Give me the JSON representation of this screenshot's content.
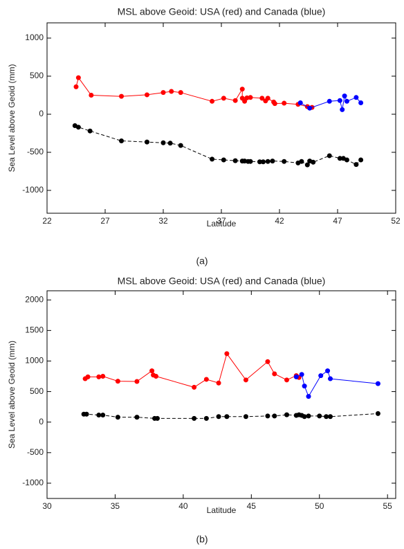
{
  "chart_data": [
    {
      "type": "line",
      "title": "MSL above Geoid: USA (red) and Canada (blue)",
      "xlabel": "Latitude",
      "ylabel": "Sea Level above Geoid (mm)",
      "caption": "(a)",
      "xlim": [
        22,
        52
      ],
      "xticks": [
        22,
        27,
        32,
        37,
        42,
        47,
        52
      ],
      "ylim": [
        -1300,
        1200
      ],
      "yticks": [
        -1000,
        -500,
        0,
        500,
        1000
      ],
      "series": [
        {
          "color": "#ff0000",
          "linestyle": "solid",
          "x": [
            24.5,
            24.7,
            25.8,
            28.4,
            30.6,
            32.0,
            32.7,
            33.5,
            36.2,
            37.2,
            38.2,
            38.8,
            38.8,
            39.0,
            39.2,
            39.5,
            40.5,
            40.8,
            41.0,
            41.5,
            41.6,
            42.4,
            43.6,
            44.4,
            44.8
          ],
          "values": [
            360,
            480,
            250,
            235,
            255,
            285,
            300,
            285,
            170,
            210,
            180,
            330,
            210,
            170,
            215,
            220,
            210,
            175,
            210,
            160,
            140,
            145,
            130,
            100,
            90
          ]
        },
        {
          "color": "#0000ff",
          "linestyle": "solid",
          "x": [
            43.8,
            44.6,
            46.3,
            47.2,
            47.4,
            47.6,
            47.8,
            48.6,
            49.0
          ],
          "values": [
            150,
            80,
            170,
            180,
            60,
            240,
            170,
            220,
            150
          ]
        },
        {
          "color": "#000000",
          "linestyle": "dashed",
          "x": [
            24.4,
            24.7,
            25.7,
            28.4,
            30.6,
            32.0,
            32.6,
            33.5,
            36.2,
            37.2,
            38.2,
            38.8,
            39.0,
            39.3,
            39.5,
            40.3,
            40.6,
            41.0,
            41.4,
            42.4,
            43.6,
            43.9,
            44.4,
            44.6,
            44.9,
            46.3,
            47.2,
            47.5,
            47.8,
            48.6,
            49.0
          ],
          "values": [
            -150,
            -170,
            -220,
            -350,
            -365,
            -375,
            -380,
            -410,
            -590,
            -600,
            -610,
            -615,
            -615,
            -620,
            -620,
            -625,
            -625,
            -620,
            -615,
            -620,
            -640,
            -620,
            -665,
            -615,
            -630,
            -545,
            -580,
            -580,
            -600,
            -660,
            -600
          ]
        }
      ]
    },
    {
      "type": "line",
      "title": "MSL above Geoid: USA (red) and Canada (blue)",
      "xlabel": "Latitude",
      "ylabel": "Sea Level above Geoid (mm)",
      "caption": "(b)",
      "xlim": [
        30,
        55.6
      ],
      "xticks": [
        30,
        35,
        40,
        45,
        50,
        55
      ],
      "ylim": [
        -1250,
        2150
      ],
      "yticks": [
        -1000,
        -500,
        0,
        500,
        1000,
        1500,
        2000
      ],
      "series": [
        {
          "color": "#ff0000",
          "linestyle": "solid",
          "x": [
            32.8,
            33.0,
            33.8,
            34.1,
            35.2,
            36.6,
            37.7,
            37.8,
            38.0,
            40.8,
            41.7,
            42.6,
            43.2,
            44.6,
            46.2,
            46.7,
            47.6,
            48.3,
            48.5
          ],
          "values": [
            710,
            740,
            740,
            750,
            670,
            665,
            840,
            770,
            750,
            570,
            700,
            640,
            1120,
            690,
            990,
            790,
            690,
            760,
            730
          ]
        },
        {
          "color": "#0000ff",
          "linestyle": "solid",
          "x": [
            48.3,
            48.7,
            48.9,
            49.2,
            50.1,
            50.6,
            50.8,
            54.3
          ],
          "values": [
            740,
            780,
            590,
            420,
            760,
            840,
            710,
            630
          ]
        },
        {
          "color": "#000000",
          "linestyle": "dashed",
          "x": [
            32.7,
            32.9,
            33.8,
            34.1,
            35.2,
            36.6,
            37.9,
            38.1,
            40.8,
            41.7,
            42.6,
            43.2,
            44.6,
            46.2,
            46.7,
            47.6,
            48.3,
            48.5,
            48.7,
            48.9,
            49.2,
            50.0,
            50.5,
            50.8,
            54.3
          ],
          "values": [
            130,
            130,
            115,
            115,
            80,
            80,
            60,
            60,
            60,
            60,
            90,
            90,
            90,
            100,
            100,
            120,
            110,
            120,
            110,
            90,
            100,
            100,
            90,
            90,
            140
          ]
        }
      ]
    }
  ]
}
